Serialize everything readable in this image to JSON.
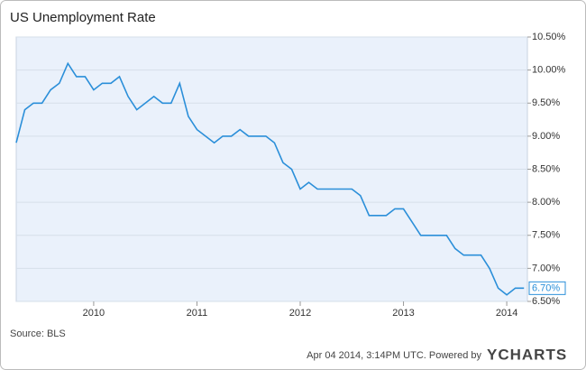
{
  "chart_data": {
    "type": "line",
    "title": "US Unemployment Rate",
    "source": "Source: BLS",
    "timestamp": "Apr 04 2014, 3:14PM UTC. Powered by",
    "brand": "YCHARTS",
    "x": [
      2009.25,
      2009.333,
      2009.417,
      2009.5,
      2009.583,
      2009.667,
      2009.75,
      2009.833,
      2009.917,
      2010,
      2010.083,
      2010.167,
      2010.25,
      2010.333,
      2010.417,
      2010.5,
      2010.583,
      2010.667,
      2010.75,
      2010.833,
      2010.917,
      2011,
      2011.083,
      2011.167,
      2011.25,
      2011.333,
      2011.417,
      2011.5,
      2011.583,
      2011.667,
      2011.75,
      2011.833,
      2011.917,
      2012,
      2012.083,
      2012.167,
      2012.25,
      2012.333,
      2012.417,
      2012.5,
      2012.583,
      2012.667,
      2012.75,
      2012.833,
      2012.917,
      2013,
      2013.083,
      2013.167,
      2013.25,
      2013.333,
      2013.417,
      2013.5,
      2013.583,
      2013.667,
      2013.75,
      2013.833,
      2013.917,
      2014,
      2014.083,
      2014.167
    ],
    "series": [
      {
        "name": "US Unemployment Rate",
        "color": "#2b8fd9",
        "values": [
          8.9,
          9.4,
          9.5,
          9.5,
          9.7,
          9.8,
          10.1,
          9.9,
          9.9,
          9.7,
          9.8,
          9.8,
          9.9,
          9.6,
          9.4,
          9.5,
          9.6,
          9.5,
          9.5,
          9.8,
          9.3,
          9.1,
          9.0,
          8.9,
          9.0,
          9.0,
          9.1,
          9.0,
          9.0,
          9.0,
          8.9,
          8.6,
          8.5,
          8.2,
          8.3,
          8.2,
          8.2,
          8.2,
          8.2,
          8.2,
          8.1,
          7.8,
          7.8,
          7.8,
          7.9,
          7.9,
          7.7,
          7.5,
          7.5,
          7.5,
          7.5,
          7.3,
          7.2,
          7.2,
          7.2,
          7.0,
          6.7,
          6.6,
          6.7,
          6.7
        ],
        "value_labels": [
          null,
          null,
          null,
          null,
          null,
          null,
          null,
          null,
          null,
          null,
          null,
          null,
          null,
          null,
          null,
          null,
          null,
          null,
          null,
          null,
          null,
          null,
          null,
          null,
          null,
          null,
          null,
          null,
          null,
          null,
          null,
          null,
          null,
          null,
          null,
          null,
          null,
          null,
          null,
          null,
          null,
          null,
          null,
          null,
          null,
          null,
          null,
          null,
          null,
          null,
          null,
          null,
          null,
          null,
          null,
          null,
          null,
          null,
          null,
          "6.70%"
        ]
      }
    ],
    "xlim": [
      2009.25,
      2014.2
    ],
    "xticks": [
      2010,
      2011,
      2012,
      2013,
      2014
    ],
    "ylim": [
      6.5,
      10.5
    ],
    "yticks": [
      {
        "value": 6.5,
        "label": "6.50%"
      },
      {
        "value": 7.0,
        "label": "7.00%"
      },
      {
        "value": 7.5,
        "label": "7.50%"
      },
      {
        "value": 8.0,
        "label": "8.00%"
      },
      {
        "value": 8.5,
        "label": "8.50%"
      },
      {
        "value": 9.0,
        "label": "9.00%"
      },
      {
        "value": 9.5,
        "label": "9.50%"
      },
      {
        "value": 10.0,
        "label": "10.00%"
      },
      {
        "value": 10.5,
        "label": "10.50%"
      }
    ],
    "grid": true
  }
}
